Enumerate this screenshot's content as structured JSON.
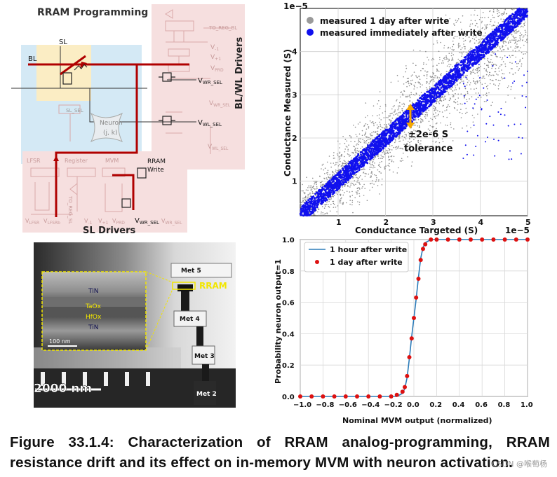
{
  "circuit": {
    "title": "RRAM Programming",
    "bl": "BL",
    "sl": "SL",
    "neuron": "Neuron",
    "neuron_idx": "(j, k)",
    "sl_sel": "SL_SEL",
    "to_reg_bl": "TO_REG_BL",
    "driver_title": "BL/WL Drivers",
    "v1": "V",
    "v1_sub": "-1",
    "v2": "V",
    "v2_sub": "+1",
    "vprd": "V",
    "vprd_sub": "PRD",
    "wr_sel_1": "V",
    "wr_sel_1_sub": "WR_SEL",
    "wl_sel": "V",
    "wl_sel_sub": "WL_SEL",
    "wl_sel_bar": "V",
    "wl_sel_bar_sub": "WL_SEL",
    "wr_sel_bar": "V",
    "wr_sel_bar_sub": "WR_SEL",
    "lfsr": "LFSR",
    "register": "Register",
    "mvm": "MVM",
    "rram_write_1": "RRAM",
    "rram_write_2": "Write",
    "to_reg_sl": "TO_REG_SL",
    "vlfsr": "V",
    "vlfsr_sub": "LFSR",
    "vlfsrb": "V",
    "vlfsrb_sub": "LFSRb",
    "vm1": "V",
    "vm1_sub": "-1",
    "vp1": "V",
    "vp1_sub": "+1",
    "vprd2": "V",
    "vprd2_sub": "PRD",
    "wr_sel_2": "V",
    "wr_sel_2_sub": "WR_SEL",
    "wr_sel_2b": "V",
    "wr_sel_2b_sub": "WR_SEL",
    "sl_drivers": "SL Drivers"
  },
  "tem": {
    "tin_top": "TiN",
    "taox": "TaOx",
    "hfox": "HfOx",
    "tin_bottom": "TiN",
    "scale_inset": "100  nm",
    "scale_main": "2000 nm",
    "met5": "Met 5",
    "met4": "Met 4",
    "met3": "Met 3",
    "met2": "Met 2",
    "rram": "RRAM"
  },
  "scatter": {
    "title": "",
    "xlabel": "Conductance Targeted (S)",
    "ylabel": "Conductance Measured (S)",
    "x_offset": "1e−5",
    "y_offset": "1e−5",
    "x_ticks": [
      "1",
      "2",
      "3",
      "4",
      "5"
    ],
    "y_ticks": [
      "1",
      "2",
      "3",
      "4"
    ],
    "legend": [
      "measured 1 day after write",
      "measured immediately after write"
    ],
    "annotation_1": "±2e-6 S",
    "annotation_2": "tolerance",
    "colors": {
      "gray": "#8c8c8c",
      "blue": "#1010ee",
      "arrow": "#f5a800"
    }
  },
  "chart_data": [
    {
      "type": "scatter",
      "title": "",
      "xlabel": "Conductance Targeted (S)",
      "ylabel": "Conductance Measured (S)",
      "x_scale": "1e-5",
      "y_scale": "1e-5",
      "xlim": [
        0.2,
        5.0
      ],
      "ylim": [
        0.2,
        5.0
      ],
      "grid": true,
      "legend_position": "top-left",
      "series": [
        {
          "name": "measured 1 day after write",
          "color": "#8c8c8c",
          "x": [
            0.2,
            1,
            2,
            3,
            4,
            5
          ],
          "y": [
            0.2,
            1,
            2,
            3,
            4,
            5
          ],
          "spread": 0.55
        },
        {
          "name": "measured immediately after write",
          "color": "#1010ee",
          "x": [
            0.2,
            1,
            2,
            3,
            4,
            5
          ],
          "y": [
            0.2,
            1,
            2,
            3,
            4,
            5
          ],
          "spread": 0.2
        }
      ],
      "annotation": "±2e-6 S tolerance"
    },
    {
      "type": "line",
      "title": "",
      "xlabel": "Nominal MVM output (normalized)",
      "ylabel": "Probability neuron output=1",
      "xlim": [
        -1.0,
        1.0
      ],
      "ylim": [
        0.0,
        1.0
      ],
      "grid": true,
      "legend_position": "top-left",
      "x_ticks": [
        "−1.0",
        "−0.8",
        "−0.6",
        "−0.4",
        "−0.2",
        "0.0",
        "0.2",
        "0.4",
        "0.6",
        "0.8",
        "1.0"
      ],
      "y_ticks": [
        "0.0",
        "0.2",
        "0.4",
        "0.6",
        "0.8",
        "1.0"
      ],
      "series": [
        {
          "name": "1 hour after write",
          "color": "#2b7bb9",
          "style": "line",
          "x": [
            -1.0,
            -0.2,
            -0.15,
            -0.1,
            -0.08,
            -0.06,
            -0.04,
            -0.02,
            0.0,
            0.02,
            0.04,
            0.06,
            0.08,
            0.1,
            0.15,
            0.2,
            1.0
          ],
          "y": [
            0.0,
            0.0,
            0.0,
            0.02,
            0.05,
            0.12,
            0.24,
            0.38,
            0.5,
            0.62,
            0.76,
            0.88,
            0.95,
            0.98,
            1.0,
            1.0,
            1.0
          ]
        },
        {
          "name": "1 day after write",
          "color": "#dd1111",
          "style": "markers",
          "x": [
            -1.0,
            -0.9,
            -0.8,
            -0.7,
            -0.6,
            -0.5,
            -0.4,
            -0.3,
            -0.2,
            -0.15,
            -0.1,
            -0.08,
            -0.06,
            -0.04,
            -0.02,
            0.0,
            0.02,
            0.04,
            0.06,
            0.08,
            0.1,
            0.15,
            0.2,
            0.3,
            0.4,
            0.5,
            0.6,
            0.7,
            0.8,
            0.9,
            1.0
          ],
          "y": [
            0.0,
            0.0,
            0.0,
            0.0,
            0.0,
            0.0,
            0.0,
            0.0,
            0.0,
            0.01,
            0.03,
            0.06,
            0.13,
            0.25,
            0.37,
            0.5,
            0.63,
            0.75,
            0.87,
            0.94,
            0.97,
            1.0,
            1.0,
            1.0,
            1.0,
            1.0,
            1.0,
            1.0,
            1.0,
            1.0,
            1.0
          ]
        }
      ]
    }
  ],
  "sigmoid": {
    "xlabel": "Nominal MVM output (normalized)",
    "ylabel": "Probability neuron output=1",
    "legend": [
      "1 hour after write",
      "1 day after write"
    ],
    "x_ticks": [
      "−1.0",
      "−0.8",
      "−0.6",
      "−0.4",
      "−0.2",
      "0.0",
      "0.2",
      "0.4",
      "0.6",
      "0.8",
      "1.0"
    ],
    "y_ticks": [
      "0.0",
      "0.2",
      "0.4",
      "0.6",
      "0.8",
      "1.0"
    ]
  },
  "caption": {
    "line1": "Figure 33.1.4: Characterization of RRAM analog-programming, RRAM",
    "line2": "resistance drift and its effect on in-memory MVM with neuron activation."
  },
  "watermark": "CSDN @喉萄杨"
}
